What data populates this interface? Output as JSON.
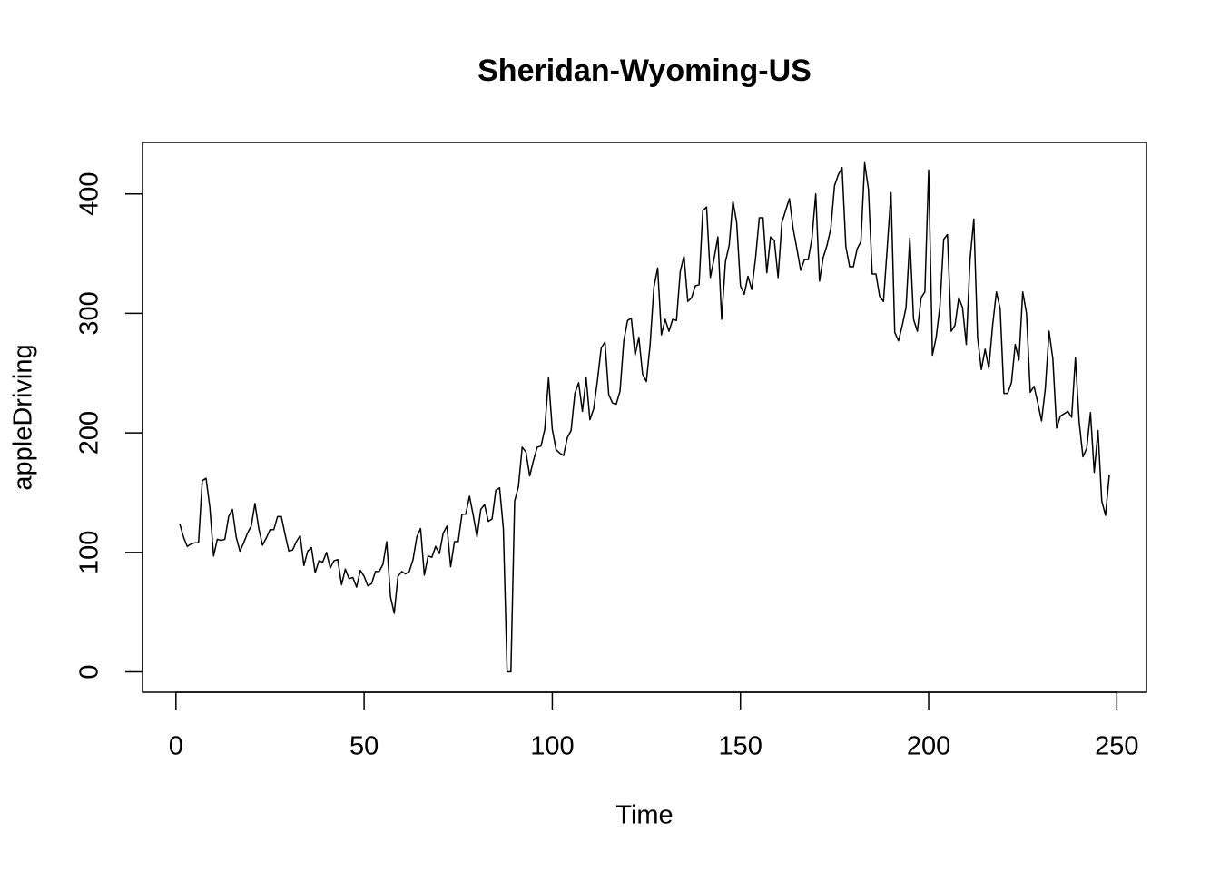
{
  "chart_data": {
    "type": "line",
    "title": "Sheridan-Wyoming-US",
    "x_label": "Time",
    "y_label": "appleDriving",
    "x": [
      1,
      2,
      3,
      4,
      5,
      6,
      7,
      8,
      9,
      10,
      11,
      12,
      13,
      14,
      15,
      16,
      17,
      18,
      19,
      20,
      21,
      22,
      23,
      24,
      25,
      26,
      27,
      28,
      29,
      30,
      31,
      32,
      33,
      34,
      35,
      36,
      37,
      38,
      39,
      40,
      41,
      42,
      43,
      44,
      45,
      46,
      47,
      48,
      49,
      50,
      51,
      52,
      53,
      54,
      55,
      56,
      57,
      58,
      59,
      60,
      61,
      62,
      63,
      64,
      65,
      66,
      67,
      68,
      69,
      70,
      71,
      72,
      73,
      74,
      75,
      76,
      77,
      78,
      79,
      80,
      81,
      82,
      83,
      84,
      85,
      86,
      87,
      88,
      89,
      90,
      91,
      92,
      93,
      94,
      95,
      96,
      97,
      98,
      99,
      100,
      101,
      102,
      103,
      104,
      105,
      106,
      107,
      108,
      109,
      110,
      111,
      112,
      113,
      114,
      115,
      116,
      117,
      118,
      119,
      120,
      121,
      122,
      123,
      124,
      125,
      126,
      127,
      128,
      129,
      130,
      131,
      132,
      133,
      134,
      135,
      136,
      137,
      138,
      139,
      140,
      141,
      142,
      143,
      144,
      145,
      146,
      147,
      148,
      149,
      150,
      151,
      152,
      153,
      154,
      155,
      156,
      157,
      158,
      159,
      160,
      161,
      162,
      163,
      164,
      165,
      166,
      167,
      168,
      169,
      170,
      171,
      172,
      173,
      174,
      175,
      176,
      177,
      178,
      179,
      180,
      181,
      182,
      183,
      184,
      185,
      186,
      187,
      188,
      189,
      190,
      191,
      192,
      193,
      194,
      195,
      196,
      197,
      198,
      199,
      200,
      201,
      202,
      203,
      204,
      205,
      206,
      207,
      208,
      209,
      210,
      211,
      212,
      213,
      214,
      215,
      216,
      217,
      218,
      219,
      220,
      221,
      222,
      223,
      224,
      225,
      226,
      227,
      228,
      229,
      230,
      231,
      232,
      233,
      234,
      235,
      236,
      237,
      238,
      239,
      240,
      241,
      242,
      243,
      244,
      245,
      246,
      247,
      248
    ],
    "series": [
      {
        "color": "#000000",
        "values": [
          124,
          113,
          105,
          107,
          108,
          108,
          160,
          162,
          138,
          97,
          111,
          110,
          111,
          130,
          136,
          113,
          101,
          108,
          116,
          122,
          141,
          120,
          106,
          112,
          119,
          119,
          130,
          130,
          115,
          101,
          102,
          109,
          114,
          89,
          101,
          104,
          83,
          93,
          92,
          100,
          87,
          93,
          94,
          73,
          86,
          78,
          79,
          71,
          85,
          80,
          72,
          74,
          84,
          84,
          90,
          109,
          63,
          49,
          80,
          84,
          82,
          84,
          94,
          113,
          120,
          81,
          97,
          96,
          105,
          99,
          116,
          122,
          88,
          109,
          109,
          132,
          132,
          147,
          131,
          113,
          136,
          140,
          126,
          128,
          152,
          154,
          120,
          0,
          0,
          143,
          155,
          188,
          184,
          164,
          177,
          188,
          189,
          203,
          246,
          203,
          186,
          183,
          181,
          196,
          202,
          233,
          242,
          218,
          246,
          211,
          220,
          244,
          271,
          276,
          232,
          225,
          224,
          235,
          277,
          294,
          296,
          265,
          280,
          249,
          243,
          274,
          322,
          338,
          282,
          295,
          285,
          295,
          294,
          335,
          348,
          310,
          313,
          323,
          324,
          386,
          389,
          330,
          346,
          364,
          295,
          343,
          357,
          394,
          376,
          323,
          316,
          331,
          320,
          346,
          380,
          380,
          334,
          364,
          361,
          330,
          376,
          386,
          396,
          371,
          354,
          336,
          345,
          345,
          363,
          400,
          327,
          347,
          357,
          371,
          407,
          416,
          422,
          356,
          339,
          339,
          354,
          360,
          426,
          404,
          333,
          333,
          314,
          310,
          355,
          401,
          284,
          277,
          290,
          305,
          363,
          295,
          285,
          313,
          318,
          420,
          265,
          280,
          306,
          362,
          366,
          285,
          290,
          313,
          305,
          274,
          345,
          379,
          280,
          253,
          270,
          254,
          290,
          318,
          304,
          233,
          233,
          242,
          274,
          261,
          318,
          300,
          234,
          239,
          225,
          210,
          237,
          285,
          262,
          204,
          214,
          216,
          218,
          213,
          263,
          209,
          180,
          187,
          217,
          167,
          202,
          143,
          131,
          165
        ]
      }
    ],
    "xlim": [
      -8.88,
      257.88
    ],
    "ylim": [
      -17.04,
      443.04
    ],
    "xticks": [
      0,
      50,
      100,
      150,
      200,
      250
    ],
    "yticks": [
      0,
      100,
      200,
      300,
      400
    ]
  }
}
